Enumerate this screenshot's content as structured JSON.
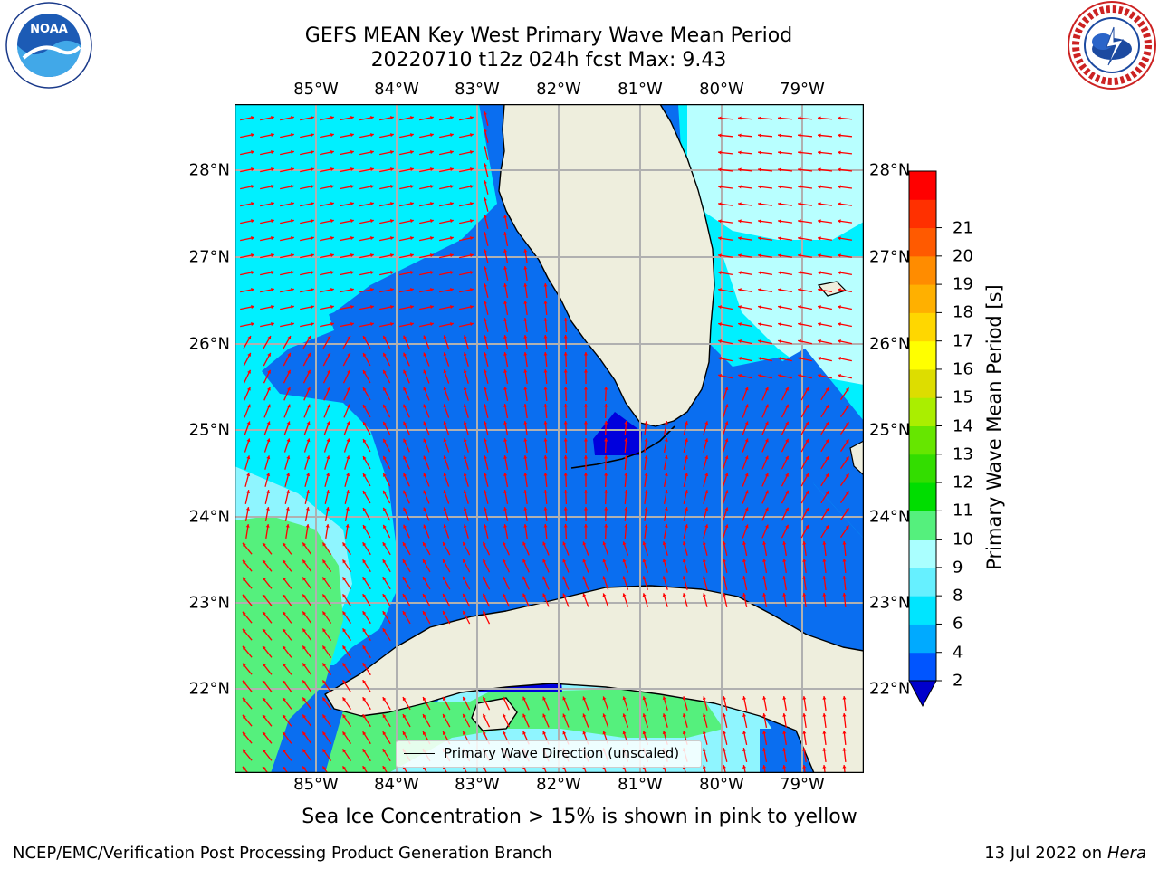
{
  "title": {
    "line1": "GEFS MEAN Key West Primary Wave Mean Period",
    "line2": "20220710 t12z 024h fcst   Max: 9.43"
  },
  "axes": {
    "lon_labels": [
      "85°W",
      "84°W",
      "83°W",
      "82°W",
      "81°W",
      "80°W",
      "79°W"
    ],
    "lat_labels": [
      "28°N",
      "27°N",
      "26°N",
      "25°N",
      "24°N",
      "23°N",
      "22°N"
    ]
  },
  "colorbar": {
    "title": "Primary Wave Mean Period [s]",
    "tick_labels": [
      "2",
      "4",
      "6",
      "8",
      "9",
      "10",
      "11",
      "12",
      "13",
      "14",
      "15",
      "16",
      "17",
      "18",
      "19",
      "20",
      "21"
    ],
    "colors": [
      "#0055ff",
      "#00aaff",
      "#00e5ff",
      "#66f0ff",
      "#aaffff",
      "#55f07d",
      "#00dd00",
      "#33dd00",
      "#66e600",
      "#aaee00",
      "#dddd00",
      "#ffff00",
      "#ffd700",
      "#ffb000",
      "#ff8c00",
      "#ff5a00",
      "#ff3000",
      "#ff0000"
    ],
    "under_color": "#0000cc"
  },
  "legend": {
    "label": "Primary Wave Direction (unscaled)"
  },
  "map_colors": {
    "land": "#eeeedd",
    "arrow": "#ff0000",
    "period_2_4": "#0a6ef0",
    "period_4_6": "#00f0ff",
    "period_6_8": "#8ff5ff",
    "period_8_9": "#b8ffff",
    "period_9_10": "#55f07d",
    "period_under": "#0000dd"
  },
  "notes": {
    "sea_ice": "Sea Ice Concentration > 15% is shown in pink to yellow"
  },
  "footer": {
    "left": "NCEP/EMC/Verification Post Processing Product Generation Branch",
    "right_prefix": "13 Jul 2022 on ",
    "right_host": "Hera"
  },
  "logos": {
    "left": "NOAA",
    "left_ring": "NATIONAL OCEANIC AND ATMOSPHERIC ADMINISTRATION · U.S. DEPARTMENT OF COMMERCE",
    "right_ring": "NATIONAL WEATHER SERVICE"
  }
}
